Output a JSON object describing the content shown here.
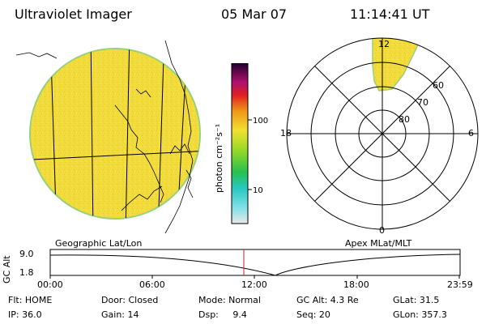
{
  "header": {
    "title": "Ultraviolet Imager",
    "date": "05 Mar 07",
    "time": "11:14:41 UT"
  },
  "colorbar": {
    "unit_label": "photon cm⁻²s⁻¹",
    "ticks": [
      "100",
      "10"
    ]
  },
  "polar_plot": {
    "mlt_labels": {
      "top": "12",
      "left": "18",
      "right": "6",
      "bottom": "0"
    },
    "lat_labels": [
      "60",
      "70",
      "80"
    ]
  },
  "map_labels": {
    "left": "Geographic Lat/Lon",
    "right": "Apex MLat/MLT"
  },
  "altitude_plot": {
    "axis_label": "GC Alt",
    "y_ticks": [
      "9.0",
      "1.8"
    ],
    "x_ticks": [
      "00:00",
      "06:00",
      "12:00",
      "18:00",
      "23:59"
    ]
  },
  "status": {
    "flt": "Flt: HOME",
    "door": "Door: Closed",
    "mode": "Mode: Normal",
    "gc_alt": "GC Alt: 4.3 Re",
    "glat": "GLat:  31.5",
    "ip": "IP: 36.0",
    "gain": "Gain: 14",
    "dsp": "Dsp:     9.4",
    "seq": "Seq: 20",
    "glon": "GLon: 357.3"
  },
  "colors": {
    "fill": "#f2dc3c",
    "rim": "#9ad07a",
    "marker": "#cc2222"
  }
}
